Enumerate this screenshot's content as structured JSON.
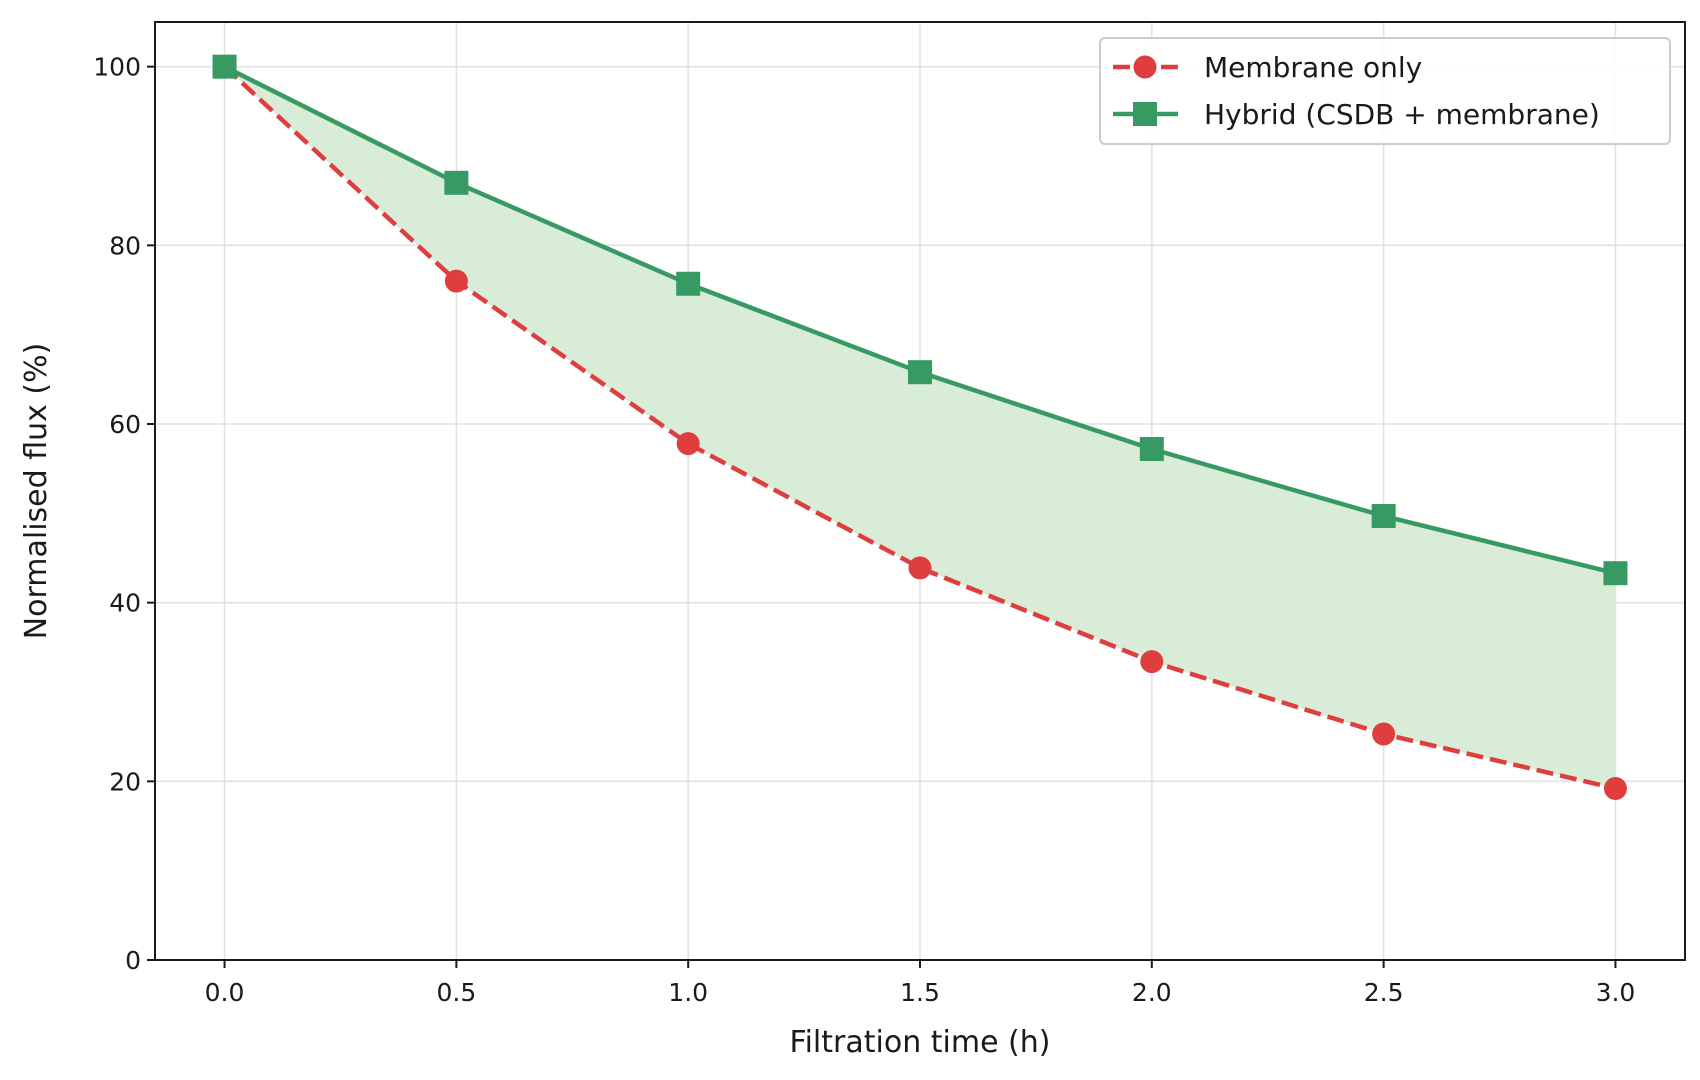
{
  "chart_data": {
    "type": "line",
    "title": "",
    "xlabel": "Filtration time (h)",
    "ylabel": "Normalised flux (%)",
    "x": [
      0.0,
      0.5,
      1.0,
      1.5,
      2.0,
      2.5,
      3.0
    ],
    "x_tick_labels": [
      "0.0",
      "0.5",
      "1.0",
      "1.5",
      "2.0",
      "2.5",
      "3.0"
    ],
    "y_ticks": [
      0,
      20,
      40,
      60,
      80,
      100
    ],
    "y_tick_labels": [
      "0",
      "20",
      "40",
      "60",
      "80",
      "100"
    ],
    "xlim": [
      -0.15,
      3.15
    ],
    "ylim": [
      0,
      105
    ],
    "grid": true,
    "legend_position": "top-right",
    "fill_between": {
      "series": [
        "Membrane only",
        "Hybrid (CSDB + membrane)"
      ],
      "color": "#d8ecd8"
    },
    "series": [
      {
        "name": "Membrane only",
        "values": [
          100,
          76,
          57.8,
          43.9,
          33.4,
          25.3,
          19.2
        ],
        "color": "#df3e3f",
        "line_style": "dashed",
        "marker": "circle"
      },
      {
        "name": "Hybrid (CSDB + membrane)",
        "values": [
          100,
          87,
          75.7,
          65.8,
          57.2,
          49.7,
          43.3
        ],
        "color": "#379a62",
        "line_style": "solid",
        "marker": "square"
      }
    ]
  }
}
